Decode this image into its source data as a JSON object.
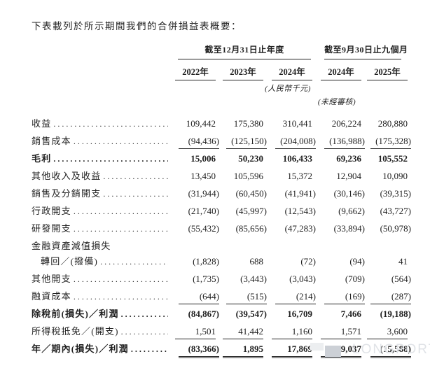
{
  "page": {
    "intro": "下表載列於所示期間我們的合併損益表概要：",
    "watermark": {
      "brand": "LONGPORT"
    }
  },
  "table": {
    "column_groups": [
      {
        "label": "截至12月31日止年度",
        "span": 3
      },
      {
        "label": "截至9月30日止九個月",
        "span": 2
      }
    ],
    "columns": [
      "2022年",
      "2023年",
      "2024年",
      "2024年",
      "2025年"
    ],
    "unit_note": "(人民幣千元)",
    "audit_note": "(未經審核)",
    "rows": [
      {
        "label": "收益",
        "values": [
          "109,442",
          "175,380",
          "310,441",
          "206,224",
          "280,880"
        ]
      },
      {
        "label": "銷售成本",
        "values": [
          "(94,436)",
          "(125,150)",
          "(204,008)",
          "(136,988)",
          "(175,328)"
        ],
        "rule": "single"
      },
      {
        "label": "毛利",
        "bold": true,
        "values": [
          "15,006",
          "50,230",
          "106,433",
          "69,236",
          "105,552"
        ]
      },
      {
        "label": "其他收入及收益",
        "values": [
          "13,450",
          "105,596",
          "15,372",
          "12,904",
          "10,090"
        ]
      },
      {
        "label": "銷售及分銷開支",
        "values": [
          "(31,944)",
          "(60,450)",
          "(41,941)",
          "(30,146)",
          "(39,315)"
        ]
      },
      {
        "label": "行政開支",
        "values": [
          "(21,740)",
          "(45,997)",
          "(12,543)",
          "(9,662)",
          "(43,727)"
        ]
      },
      {
        "label": "研發開支",
        "values": [
          "(55,432)",
          "(85,656)",
          "(47,283)",
          "(33,894)",
          "(50,978)"
        ]
      },
      {
        "label": "金融資產減值損失",
        "label_only": true,
        "no_dots": true
      },
      {
        "label": "轉回／(撥備)",
        "indent": true,
        "values": [
          "(1,828)",
          "688",
          "(72)",
          "(94)",
          "41"
        ]
      },
      {
        "label": "其他開支",
        "values": [
          "(1,735)",
          "(3,443)",
          "(3,043)",
          "(709)",
          "(564)"
        ]
      },
      {
        "label": "融資成本",
        "values": [
          "(644)",
          "(515)",
          "(214)",
          "(169)",
          "(287)"
        ],
        "rule": "single"
      },
      {
        "label": "除稅前(損失)／利潤",
        "bold": true,
        "values": [
          "(84,867)",
          "(39,547)",
          "16,709",
          "7,466",
          "(19,188)"
        ]
      },
      {
        "label": "所得稅抵免／(開支)",
        "values": [
          "1,501",
          "41,442",
          "1,160",
          "1,571",
          "3,600"
        ],
        "rule": "single"
      },
      {
        "label": "年／期內(損失)／利潤",
        "bold": true,
        "values": [
          "(83,366)",
          "1,895",
          "17,869",
          "9,037",
          "(15,588)"
        ],
        "rule": "double"
      }
    ]
  }
}
